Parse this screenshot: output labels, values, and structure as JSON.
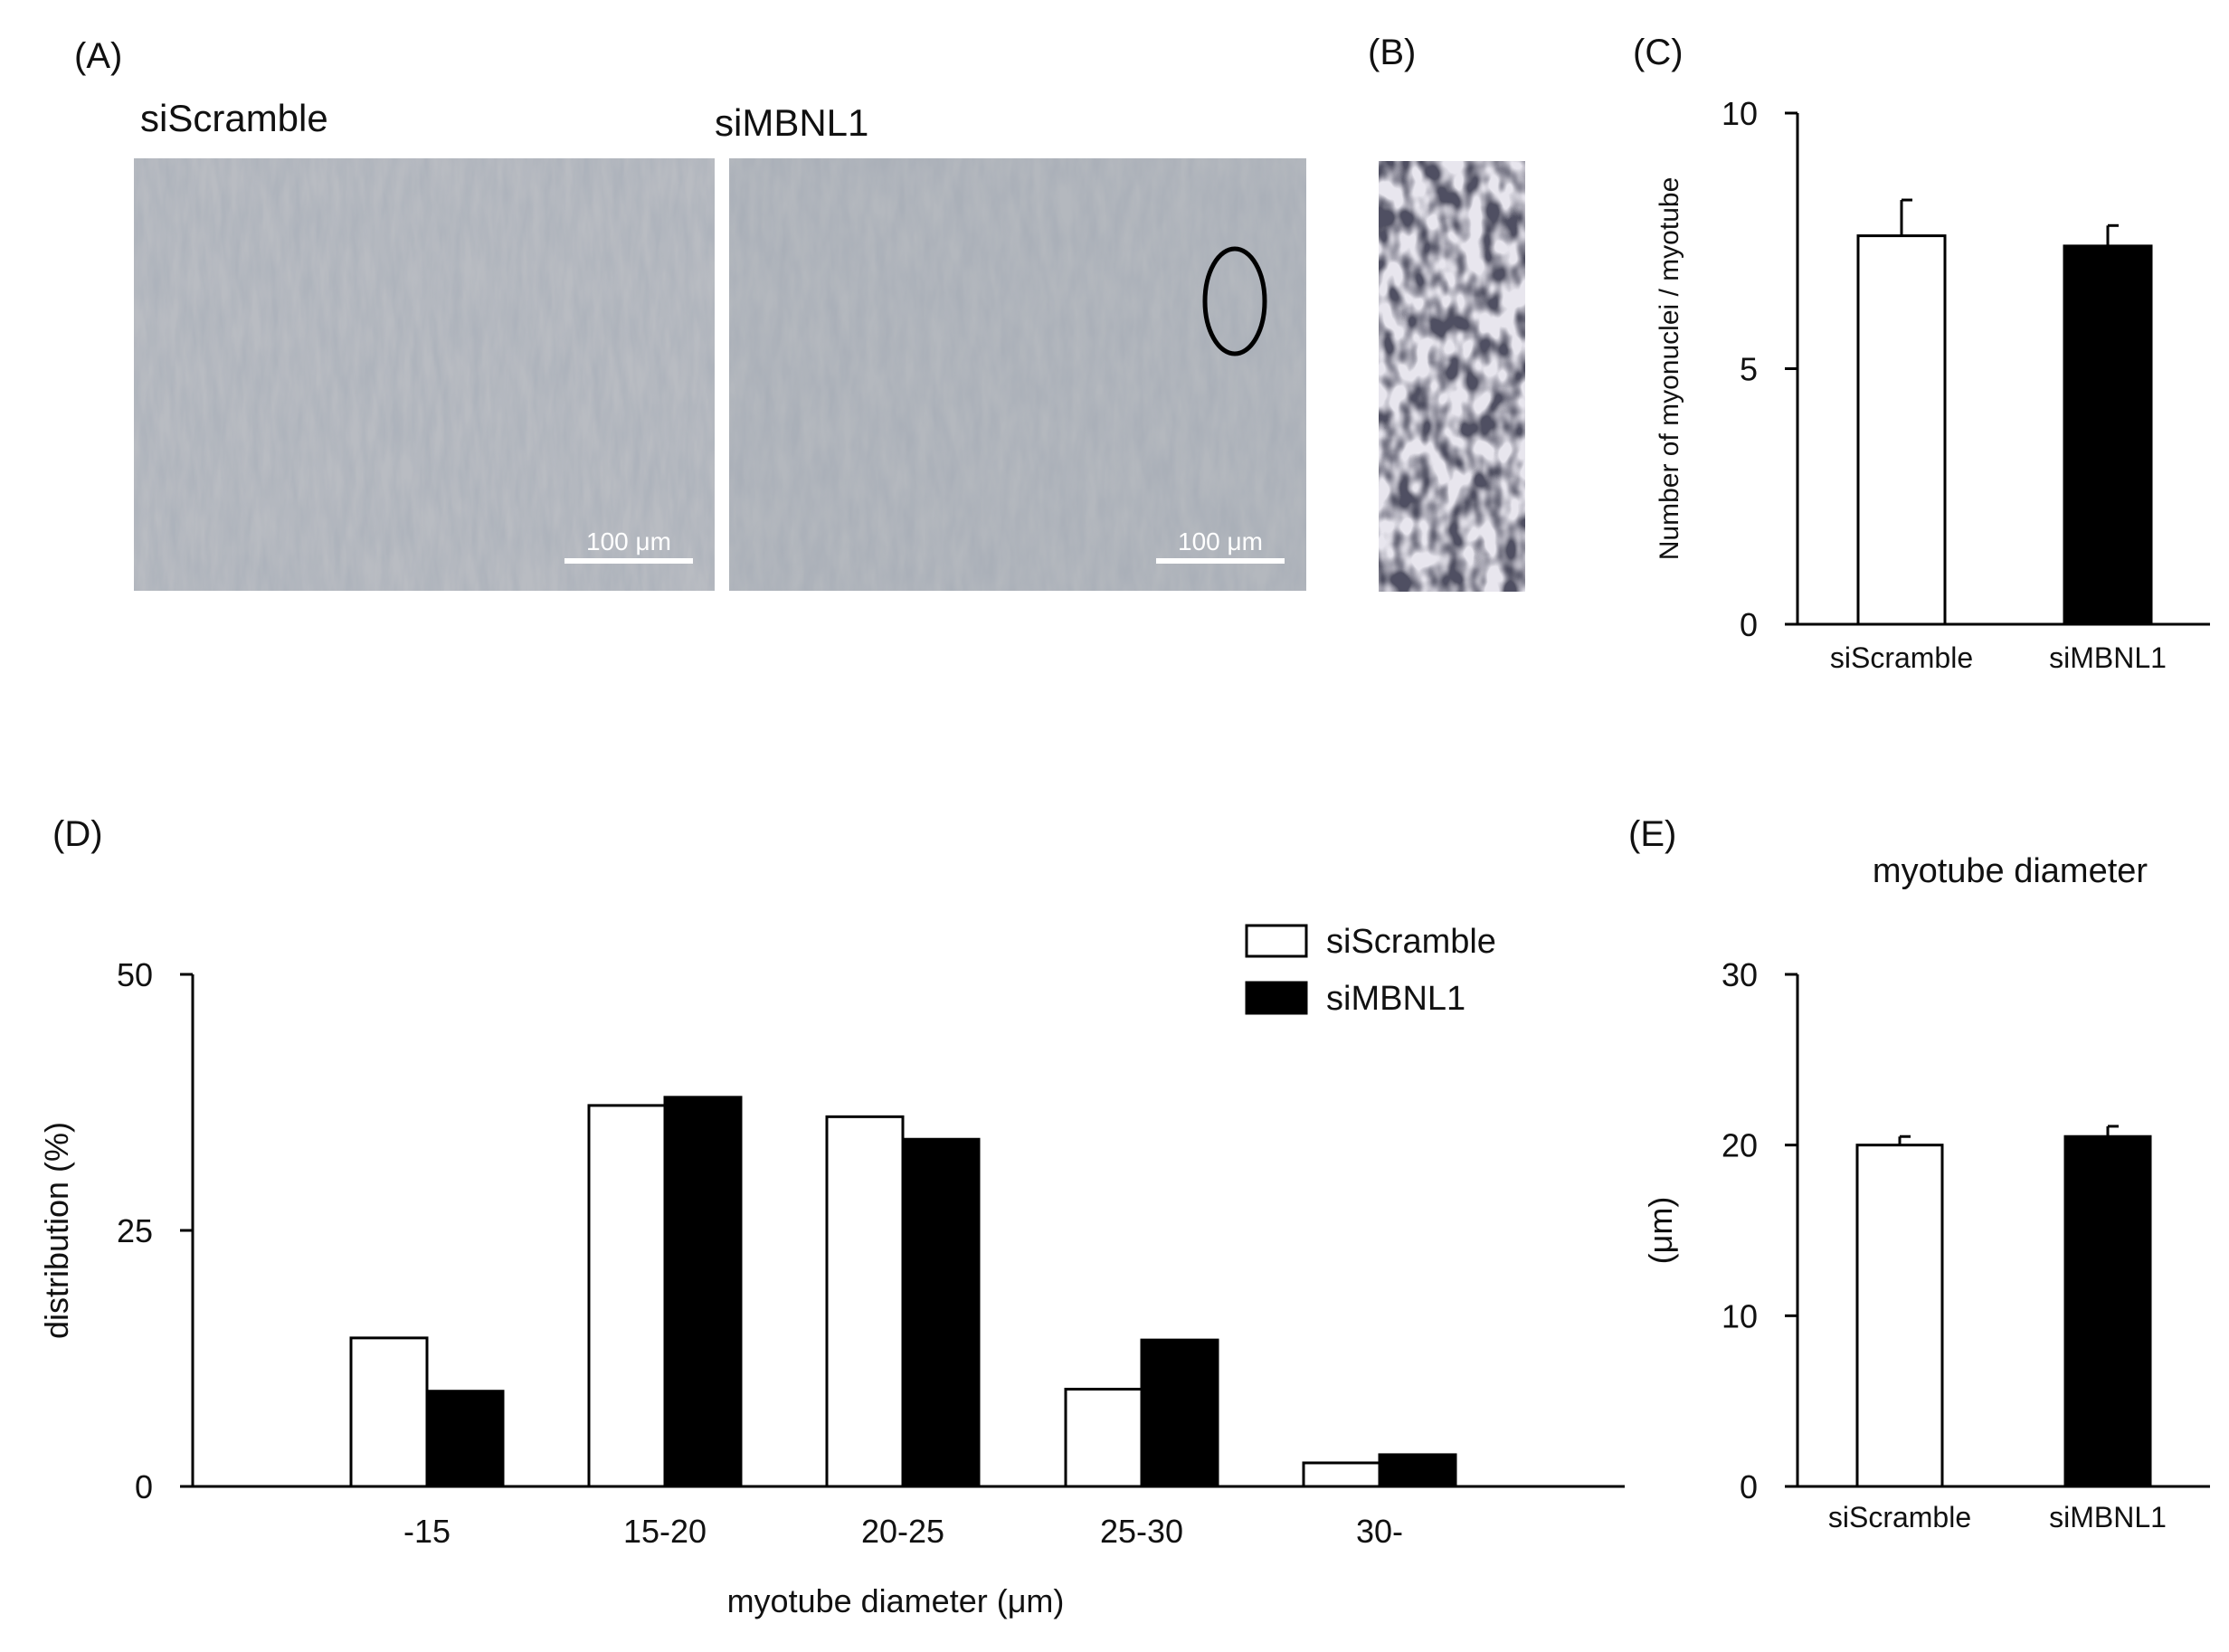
{
  "panels": {
    "a": {
      "label": "(A)",
      "left_title": "siScramble",
      "right_title": "siMBNL1",
      "scale_bar_left": "100 μm",
      "scale_bar_right": "100 μm"
    },
    "b": {
      "label": "(B)"
    },
    "c": {
      "label": "(C)"
    },
    "d": {
      "label": "(D)"
    },
    "e": {
      "label": "(E)"
    }
  },
  "colors": {
    "siScramble": "#ffffff",
    "siMBNL1": "#000000",
    "axis": "#000000"
  },
  "chart_data": [
    {
      "id": "C",
      "type": "bar",
      "categories": [
        "siScramble",
        "siMBNL1"
      ],
      "values": [
        7.6,
        7.4
      ],
      "errors": [
        0.7,
        0.4
      ],
      "ylabel": "Number of myonuclei / myotube",
      "ylim": [
        0,
        10
      ],
      "yticks": [
        0,
        5,
        10
      ],
      "ytick_labels": [
        "0",
        "5",
        "10"
      ],
      "bar_colors": [
        "#ffffff",
        "#000000"
      ],
      "grid": false
    },
    {
      "id": "D",
      "type": "bar",
      "categories": [
        "-15",
        "15-20",
        "20-25",
        "25-30",
        "30-"
      ],
      "series": [
        {
          "name": "siScramble",
          "values": [
            14.5,
            37.2,
            36.1,
            9.5,
            2.3
          ],
          "color": "#ffffff"
        },
        {
          "name": "siMBNL1",
          "values": [
            9.3,
            38.0,
            33.9,
            14.3,
            3.1
          ],
          "color": "#000000"
        }
      ],
      "xlabel": "myotube diameter (μm)",
      "ylabel": "distribution (%)",
      "ylim": [
        0,
        50
      ],
      "yticks": [
        0,
        25,
        50
      ],
      "ytick_labels": [
        "0",
        "25",
        "50"
      ],
      "legend": "top-right",
      "grid": false
    },
    {
      "id": "E",
      "type": "bar",
      "title": "myotube diameter",
      "categories": [
        "siScramble",
        "siMBNL1"
      ],
      "values": [
        20.0,
        20.5
      ],
      "errors": [
        0.5,
        0.6
      ],
      "ylabel": "(μm)",
      "ylim": [
        0,
        30
      ],
      "yticks": [
        0,
        10,
        20,
        30
      ],
      "ytick_labels": [
        "0",
        "10",
        "20",
        "30"
      ],
      "bar_colors": [
        "#ffffff",
        "#000000"
      ],
      "grid": false
    }
  ]
}
